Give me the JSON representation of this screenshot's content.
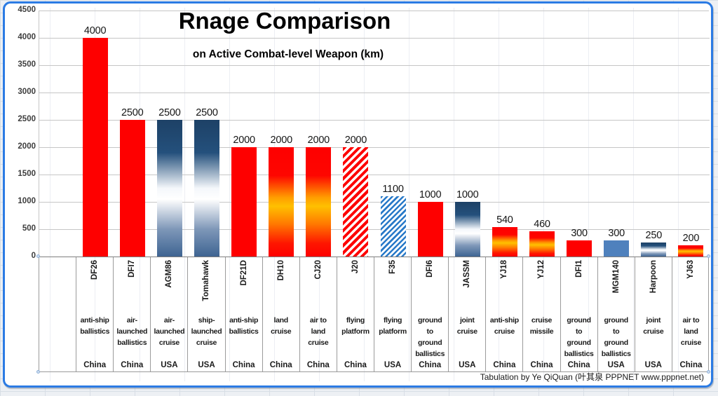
{
  "chart_data": {
    "type": "bar",
    "title": "Rnage Comparison",
    "subtitle": "on Active Combat-level Weapon (km)",
    "unit": "km",
    "ylim": [
      0,
      4500
    ],
    "y_ticks": [
      0,
      500,
      1000,
      1500,
      2000,
      2500,
      3000,
      3500,
      4000,
      4500
    ],
    "grid": true,
    "legend_position": "none",
    "leading_empty_column": true,
    "footer": "Tabulation by Ye QiQuan (叶其泉 PPPNET www.pppnet.net)",
    "bars": [
      {
        "name": "DF26",
        "value": 4000,
        "style": "solid-red",
        "type": "anti-ship ballistics",
        "type_lines": [
          "anti-ship",
          "ballistics"
        ],
        "country": "China"
      },
      {
        "name": "DFI7",
        "value": 2500,
        "style": "solid-red",
        "type": "air-launched ballistics",
        "type_lines": [
          "air-",
          "launched",
          "ballistics"
        ],
        "country": "China"
      },
      {
        "name": "AGM86",
        "value": 2500,
        "style": "blue-gradient",
        "type": "air-launched cruise",
        "type_lines": [
          "air-",
          "launched",
          "cruise"
        ],
        "country": "USA"
      },
      {
        "name": "Tomahawk",
        "value": 2500,
        "style": "blue-gradient",
        "type": "ship-launched cruise",
        "type_lines": [
          "ship-",
          "launched",
          "cruise"
        ],
        "country": "USA"
      },
      {
        "name": "DF21D",
        "value": 2000,
        "style": "solid-red",
        "type": "anti-ship ballistics",
        "type_lines": [
          "anti-ship",
          "ballistics"
        ],
        "country": "China"
      },
      {
        "name": "DH10",
        "value": 2000,
        "style": "fire-gradient",
        "type": "land cruise",
        "type_lines": [
          "land",
          "cruise"
        ],
        "country": "China"
      },
      {
        "name": "CJ20",
        "value": 2000,
        "style": "fire-gradient",
        "type": "air to land cruise",
        "type_lines": [
          "air to",
          "land",
          "cruise"
        ],
        "country": "China"
      },
      {
        "name": "J20",
        "value": 2000,
        "style": "red-hatch",
        "type": "flying platform",
        "type_lines": [
          "flying",
          "platform"
        ],
        "country": "China"
      },
      {
        "name": "F35",
        "value": 1100,
        "style": "blue-hatch",
        "type": "flying platform",
        "type_lines": [
          "flying",
          "platform"
        ],
        "country": "USA"
      },
      {
        "name": "DFI6",
        "value": 1000,
        "style": "solid-red",
        "type": "ground to ground ballistics",
        "type_lines": [
          "ground",
          "to",
          "ground",
          "ballistics"
        ],
        "country": "China"
      },
      {
        "name": "JASSM",
        "value": 1000,
        "style": "blue-gradient",
        "type": "joint cruise",
        "type_lines": [
          "joint",
          "cruise"
        ],
        "country": "USA"
      },
      {
        "name": "YJ18",
        "value": 540,
        "style": "fire-gradient",
        "type": "anti-ship cruise",
        "type_lines": [
          "anti-ship",
          "cruise"
        ],
        "country": "China"
      },
      {
        "name": "YJ12",
        "value": 460,
        "style": "fire-gradient",
        "type": "cruise missile",
        "type_lines": [
          "cruise",
          "missile"
        ],
        "country": "China"
      },
      {
        "name": "DFI1",
        "value": 300,
        "style": "solid-red",
        "type": "ground to ground ballistics",
        "type_lines": [
          "ground",
          "to",
          "ground",
          "ballistics"
        ],
        "country": "China"
      },
      {
        "name": "MGM140",
        "value": 300,
        "style": "solid-steelblue",
        "type": "ground to ground ballistics",
        "type_lines": [
          "ground",
          "to",
          "ground",
          "ballistics"
        ],
        "country": "USA"
      },
      {
        "name": "Harpoon",
        "value": 250,
        "style": "blue-gradient",
        "type": "joint cruise",
        "type_lines": [
          "joint",
          "cruise"
        ],
        "country": "USA"
      },
      {
        "name": "YJ63",
        "value": 200,
        "style": "fire-gradient",
        "type": "air to land cruise",
        "type_lines": [
          "air to",
          "land",
          "cruise"
        ],
        "country": "China"
      }
    ]
  },
  "colors": {
    "bar_red": "#fe0000",
    "fire_gold": "#ffc000",
    "navy_top": "#1d4166",
    "navy_bottom": "#3e6492",
    "steel_blue": "#4f81bd",
    "hatch_blue": "#2879c8",
    "frame_blue": "#2b7be4",
    "gridline": "#c6c6c6",
    "table_border": "#9b9b9b",
    "sheet_line": "#d8dee6"
  }
}
